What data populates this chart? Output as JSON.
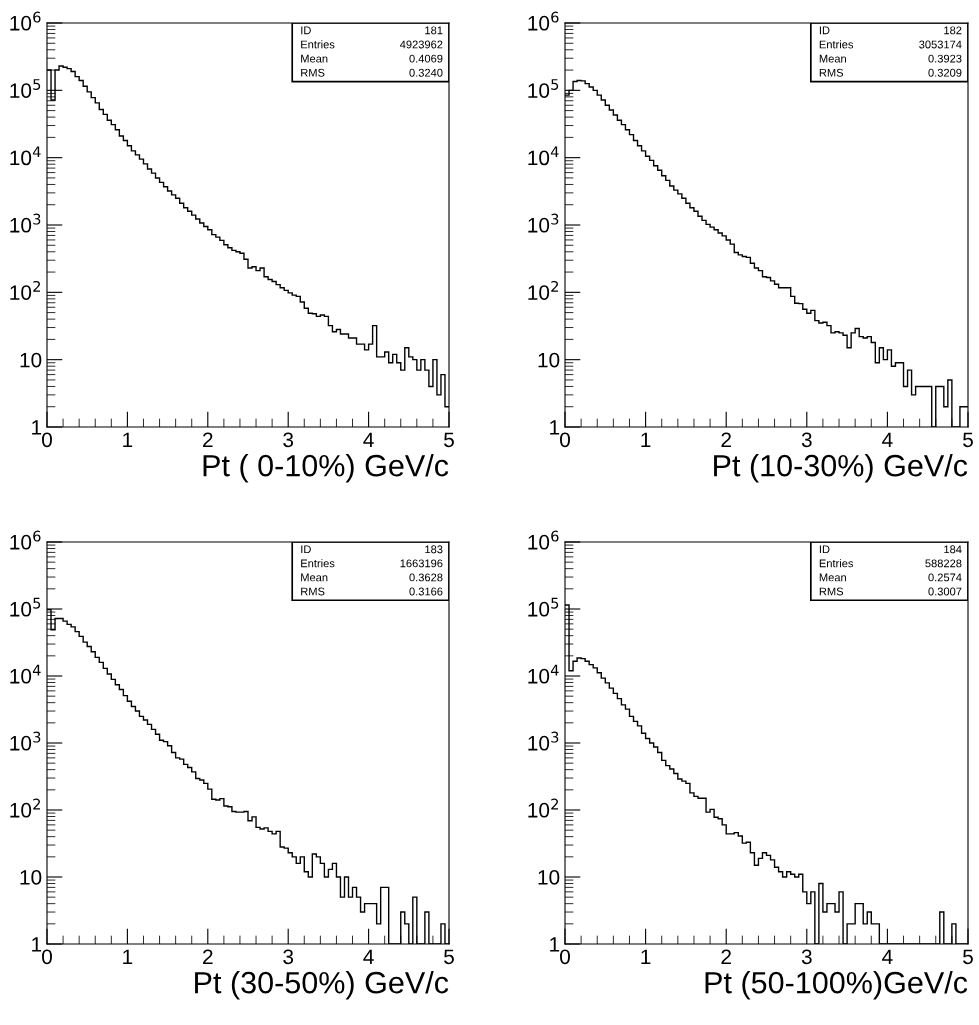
{
  "chart_data": [
    {
      "type": "histogram",
      "xlabel": "Pt ( 0-10%) GeV/c",
      "log": "y",
      "xlim": [
        0,
        5
      ],
      "xticks": [
        0,
        1,
        2,
        3,
        4,
        5
      ],
      "ylim": [
        1,
        1000000
      ],
      "yticks": [
        {
          "value": 1,
          "label": "1"
        },
        {
          "value": 10,
          "label": "10"
        },
        {
          "value": 100,
          "label": "10$^{2}$"
        },
        {
          "value": 1000,
          "label": "10$^{3}$"
        },
        {
          "value": 10000,
          "label": "10$^{4}$"
        },
        {
          "value": 100000,
          "label": "10$^{5}$"
        },
        {
          "value": 1000000,
          "label": "10$^{6}$"
        }
      ],
      "annotations": [
        "ID",
        "181",
        "Entries",
        "4923962",
        "Mean",
        "0.4069",
        "RMS",
        "0.3240"
      ],
      "color": "#000000",
      "bins": [
        0,
        0.05,
        0.1,
        0.15,
        0.2,
        0.25,
        0.3,
        0.35,
        0.4,
        0.45,
        0.5,
        0.55,
        0.6,
        0.65,
        0.7,
        0.75,
        0.8,
        0.85,
        0.9,
        0.95,
        1,
        1.05,
        1.1,
        1.15,
        1.2,
        1.25,
        1.3,
        1.35,
        1.4,
        1.45,
        1.5,
        1.55,
        1.6,
        1.65,
        1.7,
        1.75,
        1.8,
        1.85,
        1.9,
        1.95,
        2,
        2.05,
        2.1,
        2.15,
        2.2,
        2.25,
        2.3,
        2.35,
        2.4,
        2.45,
        2.5,
        2.55,
        2.6,
        2.65,
        2.7,
        2.75,
        2.8,
        2.85,
        2.9,
        2.95,
        3,
        3.05,
        3.1,
        3.15,
        3.2,
        3.25,
        3.3,
        3.35,
        3.4,
        3.45,
        3.5,
        3.55,
        3.6,
        3.65,
        3.7,
        3.75,
        3.8,
        3.85,
        3.9,
        3.95,
        4,
        4.05,
        4.1,
        4.15,
        4.2,
        4.25,
        4.3,
        4.35,
        4.4,
        4.45,
        4.5,
        4.55,
        4.6,
        4.65,
        4.7,
        4.75,
        4.8,
        4.85,
        4.9,
        4.95,
        5
      ],
      "values": [
        200000,
        72000,
        200000,
        230000,
        220000,
        210000,
        190000,
        160000,
        140000,
        115000,
        95000,
        78000,
        65000,
        52000,
        44000,
        36000,
        31000,
        26000,
        21000,
        18000,
        15000,
        12600,
        11000,
        9500,
        8100,
        6800,
        5900,
        5000,
        4300,
        3700,
        3200,
        2800,
        2500,
        2100,
        1800,
        1600,
        1400,
        1230,
        1070,
        950,
        850,
        720,
        660,
        590,
        510,
        460,
        420,
        400,
        380,
        310,
        230,
        240,
        210,
        230,
        170,
        155,
        145,
        130,
        117,
        107,
        98,
        91,
        87,
        72,
        58,
        49,
        48,
        44,
        46,
        44,
        32,
        26,
        28,
        24,
        24,
        21,
        21,
        17,
        17,
        14,
        17,
        32,
        11,
        11,
        13,
        9,
        12,
        9,
        7,
        15,
        11,
        10,
        7,
        10,
        7,
        4,
        10,
        3,
        6,
        2
      ]
    },
    {
      "type": "histogram",
      "xlabel": "Pt (10-30%) GeV/c",
      "log": "y",
      "xlim": [
        0,
        5
      ],
      "xticks": [
        0,
        1,
        2,
        3,
        4,
        5
      ],
      "ylim": [
        1,
        1000000
      ],
      "yticks": [
        {
          "value": 1,
          "label": "1"
        },
        {
          "value": 10,
          "label": "10"
        },
        {
          "value": 100,
          "label": "10$^{2}$"
        },
        {
          "value": 1000,
          "label": "10$^{3}$"
        },
        {
          "value": 10000,
          "label": "10$^{4}$"
        },
        {
          "value": 100000,
          "label": "10$^{5}$"
        },
        {
          "value": 1000000,
          "label": "10$^{6}$"
        }
      ],
      "annotations": [
        "ID",
        "182",
        "Entries",
        "3053174",
        "Mean",
        "0.3923",
        "RMS",
        "0.3209"
      ],
      "color": "#000000",
      "bins": [
        0,
        0.05,
        0.1,
        0.15,
        0.2,
        0.25,
        0.3,
        0.35,
        0.4,
        0.45,
        0.5,
        0.55,
        0.6,
        0.65,
        0.7,
        0.75,
        0.8,
        0.85,
        0.9,
        0.95,
        1,
        1.05,
        1.1,
        1.15,
        1.2,
        1.25,
        1.3,
        1.35,
        1.4,
        1.45,
        1.5,
        1.55,
        1.6,
        1.65,
        1.7,
        1.75,
        1.8,
        1.85,
        1.9,
        1.95,
        2,
        2.05,
        2.1,
        2.15,
        2.2,
        2.25,
        2.3,
        2.35,
        2.4,
        2.45,
        2.5,
        2.55,
        2.6,
        2.65,
        2.7,
        2.75,
        2.8,
        2.85,
        2.9,
        2.95,
        3,
        3.05,
        3.1,
        3.15,
        3.2,
        3.25,
        3.3,
        3.35,
        3.4,
        3.45,
        3.5,
        3.55,
        3.6,
        3.65,
        3.7,
        3.75,
        3.8,
        3.85,
        3.9,
        3.95,
        4,
        4.05,
        4.1,
        4.15,
        4.2,
        4.25,
        4.3,
        4.35,
        4.4,
        4.45,
        4.5,
        4.55,
        4.6,
        4.65,
        4.7,
        4.75,
        4.8,
        4.85,
        4.9,
        4.95,
        5
      ],
      "values": [
        85000,
        100000,
        135000,
        140000,
        138000,
        126000,
        112000,
        100000,
        85000,
        72000,
        60000,
        51000,
        43000,
        36000,
        31000,
        26000,
        22000,
        18000,
        15000,
        12600,
        10500,
        9100,
        7600,
        6500,
        5400,
        4600,
        3800,
        3300,
        2900,
        2500,
        2100,
        1800,
        1600,
        1350,
        1170,
        1020,
        930,
        850,
        760,
        690,
        600,
        520,
        390,
        360,
        340,
        330,
        270,
        230,
        210,
        170,
        166,
        148,
        132,
        117,
        117,
        117,
        87,
        69,
        68,
        56,
        49,
        54,
        38,
        35,
        36,
        32,
        25,
        26,
        25,
        23,
        15,
        25,
        29,
        22,
        21,
        22,
        18,
        9,
        15,
        10,
        14,
        8,
        9,
        9,
        4,
        7,
        3,
        4,
        4,
        4,
        4,
        null,
        4,
        4,
        2,
        5,
        null,
        null,
        2,
        2
      ]
    },
    {
      "type": "histogram",
      "xlabel": "Pt (30-50%) GeV/c",
      "log": "y",
      "xlim": [
        0,
        5
      ],
      "xticks": [
        0,
        1,
        2,
        3,
        4,
        5
      ],
      "ylim": [
        1,
        1000000
      ],
      "yticks": [
        {
          "value": 1,
          "label": "1"
        },
        {
          "value": 10,
          "label": "10"
        },
        {
          "value": 100,
          "label": "10$^{2}$"
        },
        {
          "value": 1000,
          "label": "10$^{3}$"
        },
        {
          "value": 10000,
          "label": "10$^{4}$"
        },
        {
          "value": 100000,
          "label": "10$^{5}$"
        },
        {
          "value": 1000000,
          "label": "10$^{6}$"
        }
      ],
      "annotations": [
        "ID",
        "183",
        "Entries",
        "1663196",
        "Mean",
        "0.3628",
        "RMS",
        "0.3166"
      ],
      "color": "#000000",
      "bins": [
        0,
        0.05,
        0.1,
        0.15,
        0.2,
        0.25,
        0.3,
        0.35,
        0.4,
        0.45,
        0.5,
        0.55,
        0.6,
        0.65,
        0.7,
        0.75,
        0.8,
        0.85,
        0.9,
        0.95,
        1,
        1.05,
        1.1,
        1.15,
        1.2,
        1.25,
        1.3,
        1.35,
        1.4,
        1.45,
        1.5,
        1.55,
        1.6,
        1.65,
        1.7,
        1.75,
        1.8,
        1.85,
        1.9,
        1.95,
        2,
        2.05,
        2.1,
        2.15,
        2.2,
        2.25,
        2.3,
        2.35,
        2.4,
        2.45,
        2.5,
        2.55,
        2.6,
        2.65,
        2.7,
        2.75,
        2.8,
        2.85,
        2.9,
        2.95,
        3,
        3.05,
        3.1,
        3.15,
        3.2,
        3.25,
        3.3,
        3.35,
        3.4,
        3.45,
        3.5,
        3.55,
        3.6,
        3.65,
        3.7,
        3.75,
        3.8,
        3.85,
        3.9,
        3.95,
        4,
        4.05,
        4.1,
        4.15,
        4.2,
        4.25,
        4.3,
        4.35,
        4.4,
        4.45,
        4.5,
        4.55,
        4.6,
        4.65,
        4.7,
        4.75,
        4.8,
        4.85,
        4.9,
        4.95,
        5
      ],
      "values": [
        98000,
        49000,
        72000,
        72000,
        66000,
        59000,
        54000,
        46000,
        39000,
        32000,
        27500,
        23000,
        19000,
        16000,
        13000,
        10700,
        8900,
        7400,
        6300,
        5100,
        4200,
        3500,
        3000,
        2500,
        2200,
        1900,
        1600,
        1350,
        1100,
        1050,
        910,
        720,
        600,
        575,
        480,
        430,
        370,
        295,
        280,
        250,
        205,
        145,
        141,
        148,
        115,
        112,
        95,
        93,
        93,
        95,
        69,
        79,
        55,
        52,
        54,
        48,
        44,
        48,
        28,
        27,
        23,
        20,
        16,
        20,
        12,
        10,
        22,
        20,
        16,
        10,
        13,
        16,
        10,
        5,
        10,
        5,
        7,
        5,
        3,
        4,
        4,
        4,
        2,
        7,
        7,
        null,
        null,
        null,
        3,
        2,
        null,
        5,
        null,
        null,
        3,
        null,
        null,
        null,
        2,
        null
      ]
    },
    {
      "type": "histogram",
      "xlabel": "Pt (50-100%)GeV/c",
      "log": "y",
      "xlim": [
        0,
        5
      ],
      "xticks": [
        0,
        1,
        2,
        3,
        4,
        5
      ],
      "ylim": [
        1,
        1000000
      ],
      "yticks": [
        {
          "value": 1,
          "label": "1"
        },
        {
          "value": 10,
          "label": "10"
        },
        {
          "value": 100,
          "label": "10$^{2}$"
        },
        {
          "value": 1000,
          "label": "10$^{3}$"
        },
        {
          "value": 10000,
          "label": "10$^{4}$"
        },
        {
          "value": 100000,
          "label": "10$^{5}$"
        },
        {
          "value": 1000000,
          "label": "10$^{6}$"
        }
      ],
      "annotations": [
        "ID",
        "184",
        "Entries",
        "588228",
        "Mean",
        "0.2574",
        "RMS",
        "0.3007"
      ],
      "color": "#000000",
      "bins": [
        0,
        0.05,
        0.1,
        0.15,
        0.2,
        0.25,
        0.3,
        0.35,
        0.4,
        0.45,
        0.5,
        0.55,
        0.6,
        0.65,
        0.7,
        0.75,
        0.8,
        0.85,
        0.9,
        0.95,
        1,
        1.05,
        1.1,
        1.15,
        1.2,
        1.25,
        1.3,
        1.35,
        1.4,
        1.45,
        1.5,
        1.55,
        1.6,
        1.65,
        1.7,
        1.75,
        1.8,
        1.85,
        1.9,
        1.95,
        2,
        2.05,
        2.1,
        2.15,
        2.2,
        2.25,
        2.3,
        2.35,
        2.4,
        2.45,
        2.5,
        2.55,
        2.6,
        2.65,
        2.7,
        2.75,
        2.8,
        2.85,
        2.9,
        2.95,
        3,
        3.05,
        3.1,
        3.15,
        3.2,
        3.25,
        3.3,
        3.35,
        3.4,
        3.45,
        3.5,
        3.55,
        3.6,
        3.65,
        3.7,
        3.75,
        3.8,
        3.85,
        3.9,
        3.95,
        4,
        4.05,
        4.1,
        4.15,
        4.2,
        4.25,
        4.3,
        4.35,
        4.4,
        4.45,
        4.5,
        4.55,
        4.6,
        4.65,
        4.7,
        4.75,
        4.8,
        4.85,
        4.9,
        4.95,
        5
      ],
      "values": [
        115000,
        12000,
        16600,
        18600,
        18200,
        16600,
        14800,
        13200,
        11200,
        9300,
        7900,
        6600,
        5500,
        4600,
        3700,
        3200,
        2500,
        2100,
        1800,
        1400,
        1170,
        1000,
        870,
        720,
        550,
        460,
        410,
        350,
        290,
        270,
        250,
        180,
        160,
        150,
        150,
        93,
        102,
        78,
        74,
        60,
        44,
        44,
        46,
        41,
        32,
        33,
        23,
        15,
        19,
        23,
        21,
        18,
        14,
        12,
        10,
        12,
        11,
        10,
        11,
        6,
        4,
        6,
        null,
        8,
        3,
        4,
        4,
        3,
        6,
        null,
        2,
        2,
        4,
        4,
        2,
        3,
        2,
        2,
        null,
        null,
        null,
        null,
        null,
        null,
        null,
        null,
        null,
        null,
        null,
        null,
        null,
        null,
        null,
        3,
        null,
        null,
        2,
        null,
        null,
        null
      ]
    }
  ]
}
